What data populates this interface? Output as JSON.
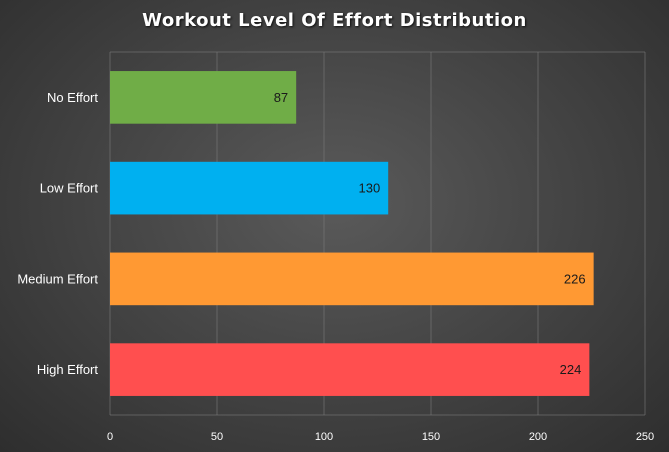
{
  "chart_data": {
    "type": "bar",
    "orientation": "horizontal",
    "title": "Workout  Level Of Effort  Distribution",
    "categories": [
      "No Effort",
      "Low Effort",
      "Medium Effort",
      "High Effort"
    ],
    "values": [
      87,
      130,
      226,
      224
    ],
    "colors": [
      "#70ad47",
      "#00b0f0",
      "#ff9933",
      "#ff4f4f"
    ],
    "xlim": [
      0,
      250
    ],
    "xticks": [
      "0",
      "50",
      "100",
      "150",
      "200",
      "250"
    ],
    "grid": true,
    "legend": "none"
  }
}
